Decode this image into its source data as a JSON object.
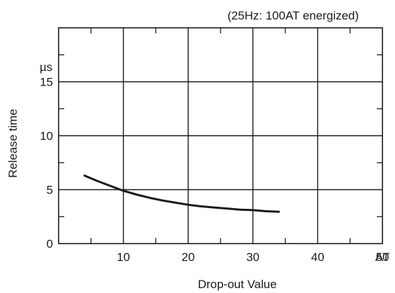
{
  "chart_data": {
    "type": "line",
    "title": "(25Hz: 100AT energized)",
    "xlabel": "Drop-out Value",
    "ylabel": "Release time",
    "x_unit": "AT",
    "y_unit": "µs",
    "xlim": [
      0,
      50
    ],
    "ylim": [
      0,
      20
    ],
    "x_ticks": [
      10,
      20,
      30,
      40,
      50
    ],
    "y_ticks": [
      0,
      5,
      10,
      15
    ],
    "grid": true,
    "series": [
      {
        "x": [
          4,
          6,
          8,
          10,
          12,
          14,
          16,
          18,
          20,
          22,
          24,
          26,
          28,
          30,
          32,
          34
        ],
        "y": [
          6.3,
          5.8,
          5.35,
          4.9,
          4.55,
          4.25,
          4.0,
          3.8,
          3.6,
          3.45,
          3.35,
          3.25,
          3.15,
          3.1,
          3.0,
          2.95
        ]
      }
    ]
  }
}
